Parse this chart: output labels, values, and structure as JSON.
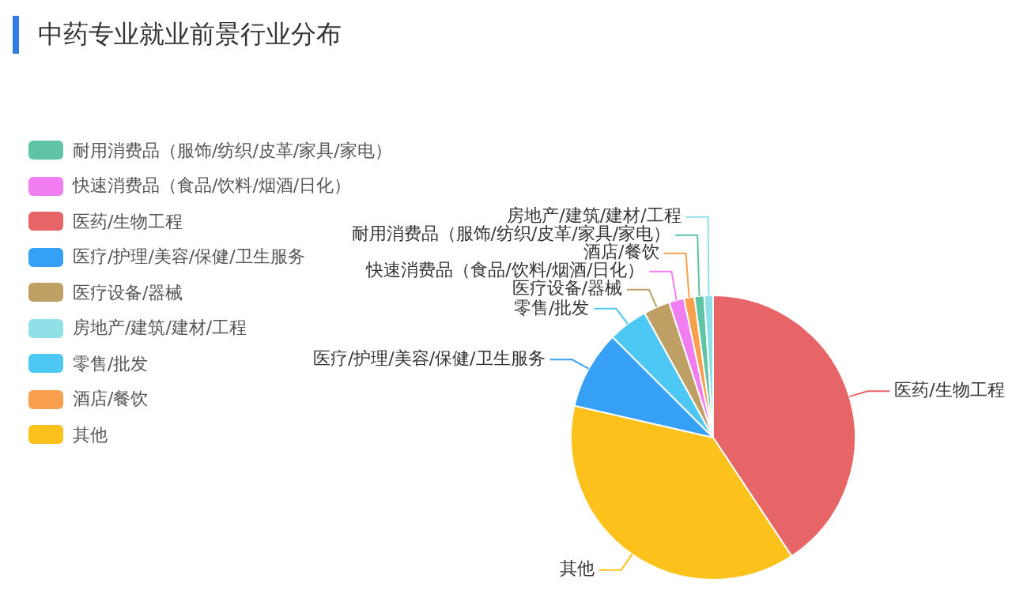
{
  "chart_data": {
    "type": "pie",
    "title": "中药专业就业前景行业分布",
    "categories": [
      "医药/生物工程",
      "其他",
      "医疗/护理/美容/保健/卫生服务",
      "零售/批发",
      "医疗设备/器械",
      "快速消费品（食品/饮料/烟酒/日化）",
      "酒店/餐饮",
      "耐用消费品（服饰/纺织/皮革/家具/家电）",
      "房地产/建筑/建材/工程"
    ],
    "values": [
      40.7,
      37.9,
      8.9,
      4.5,
      3.0,
      1.7,
      1.2,
      1.1,
      1.0
    ],
    "colors": [
      "#e86567",
      "#fcc21b",
      "#35a0f5",
      "#4dc8f4",
      "#bfa064",
      "#f07ef0",
      "#f9a04f",
      "#5fc4a6",
      "#90e0e8"
    ],
    "legend": "left"
  }
}
